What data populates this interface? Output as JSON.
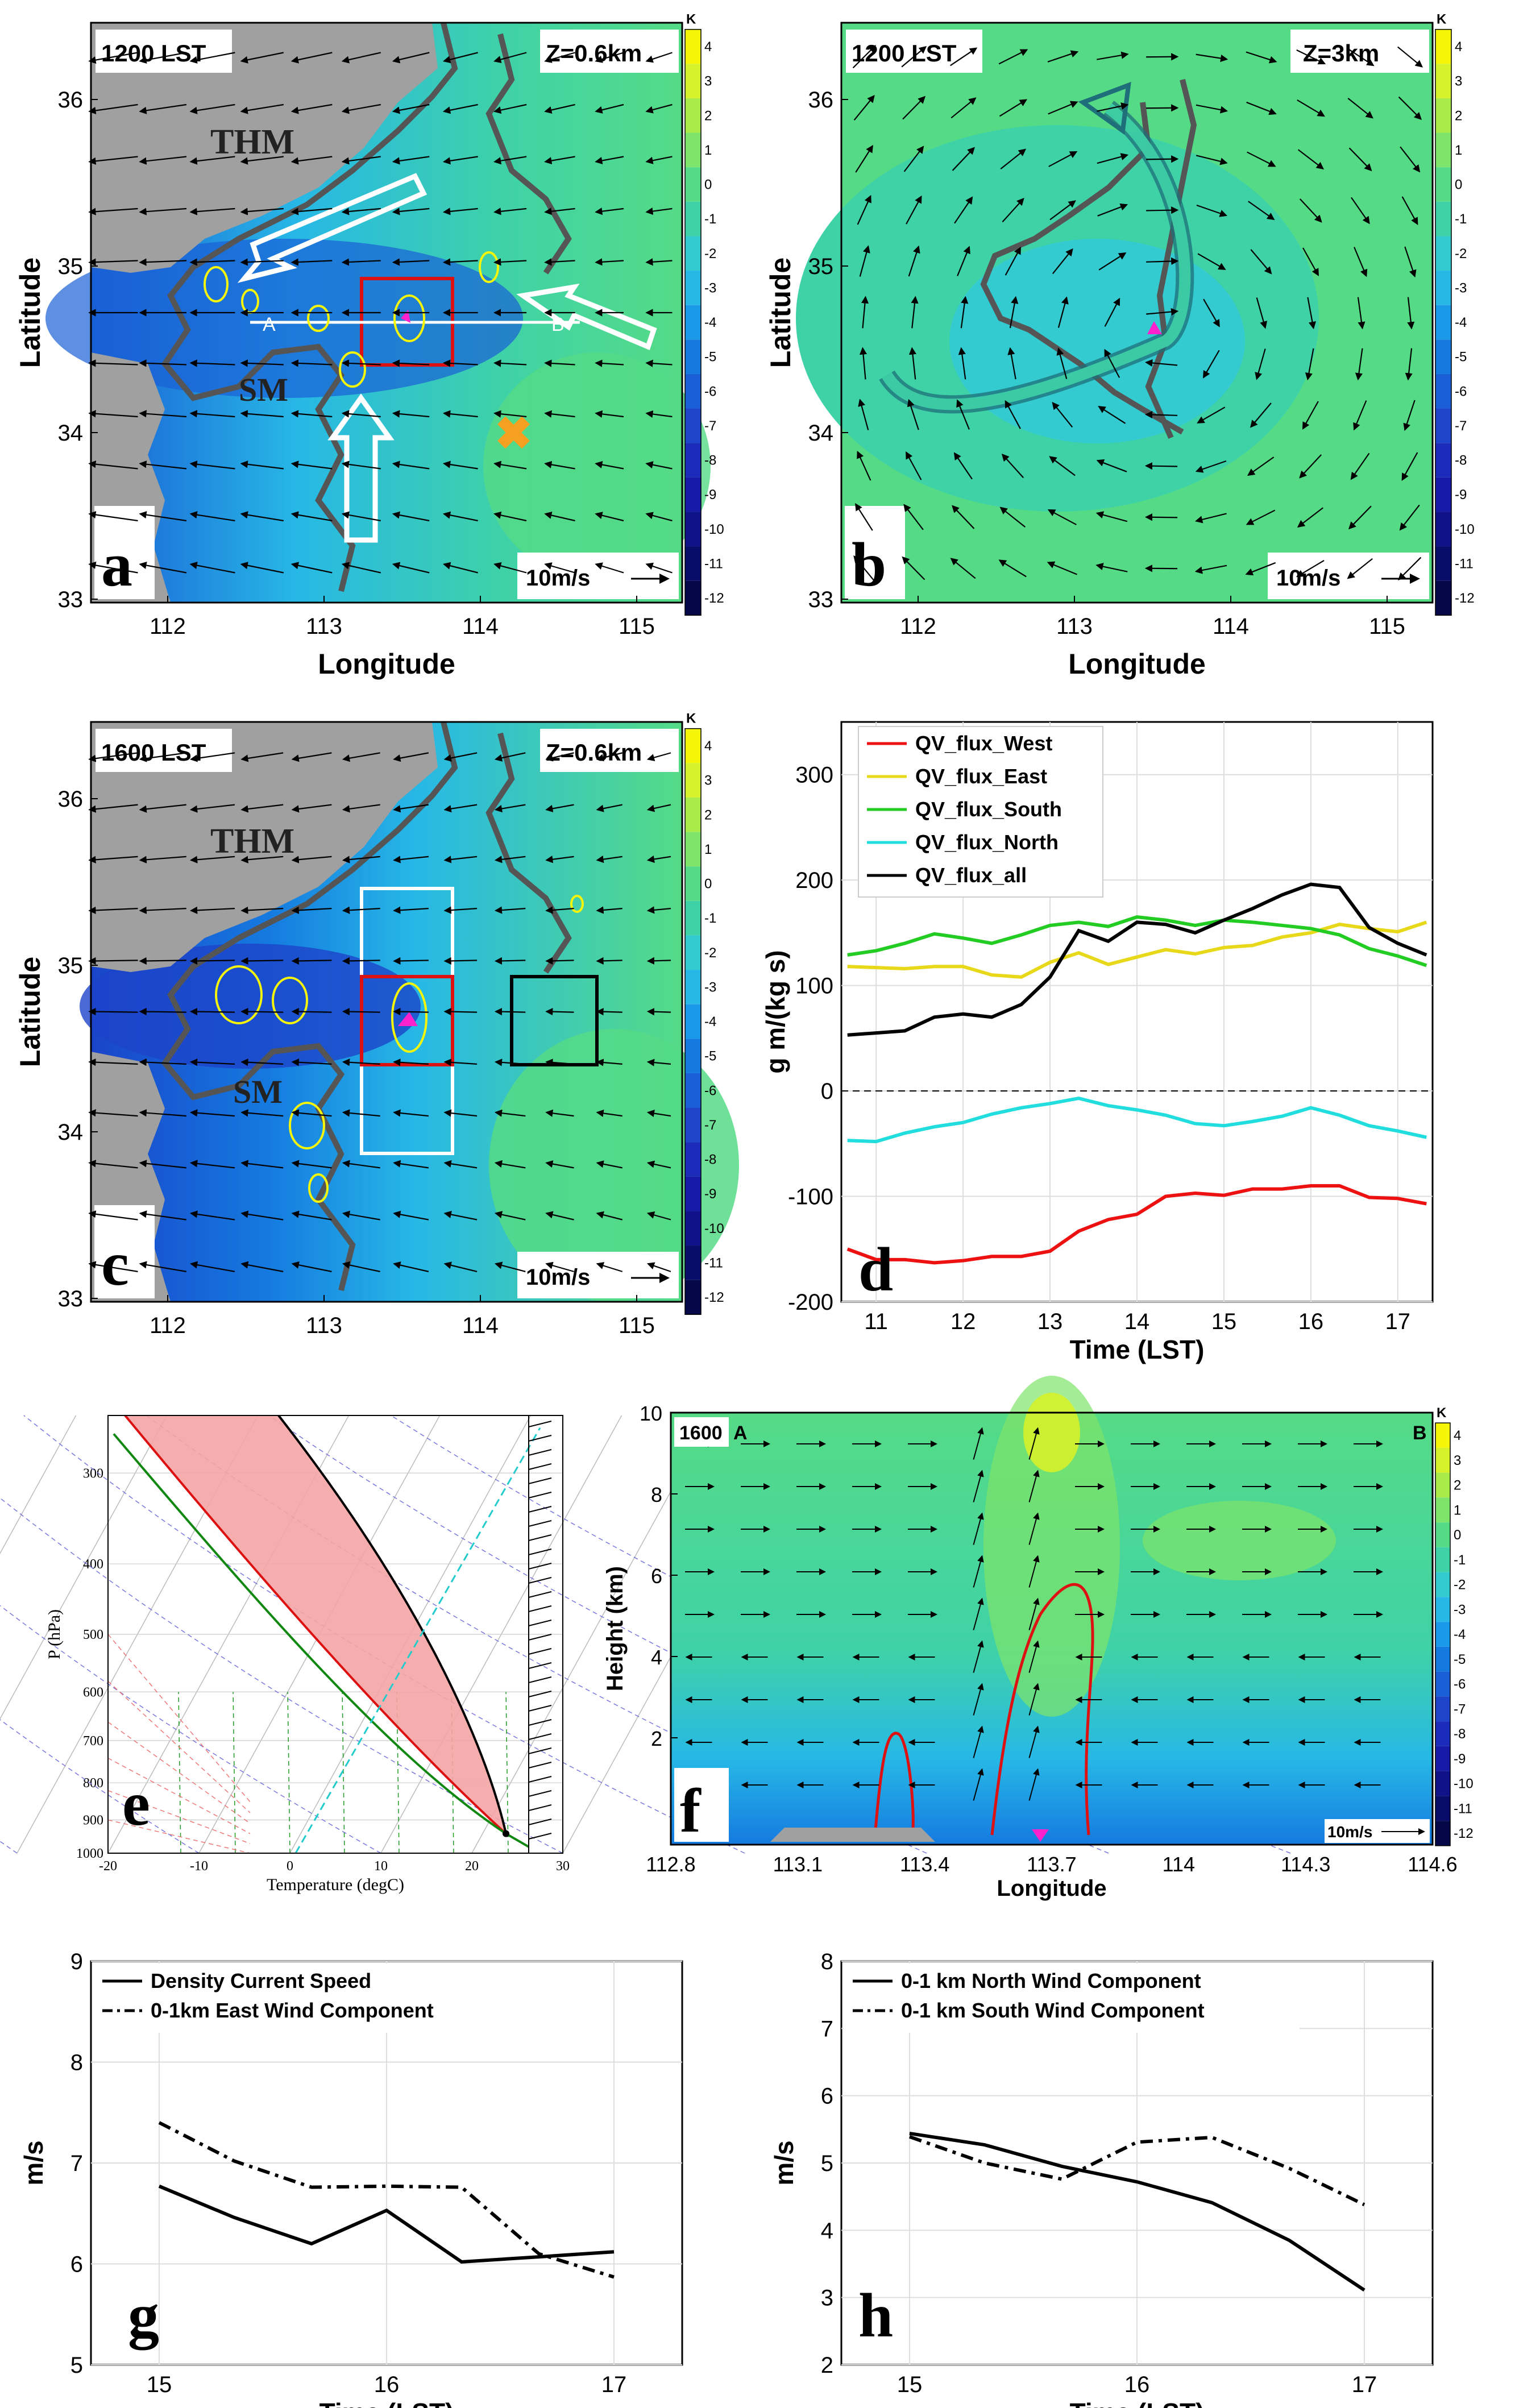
{
  "figure": {
    "colorbar": {
      "unit": "K",
      "ticks": [
        "4",
        "3",
        "2",
        "1",
        "0",
        "-1",
        "-2",
        "-3",
        "-4",
        "-5",
        "-6",
        "-7",
        "-8",
        "-9",
        "-10",
        "-11",
        "-12"
      ],
      "colors": [
        "#f5f50a",
        "#d6f22a",
        "#a9ec4a",
        "#7fe46a",
        "#55db86",
        "#3fd2a7",
        "#33cbd0",
        "#27b8e6",
        "#1a99e8",
        "#157ae0",
        "#1a5fd6",
        "#1d44c9",
        "#1b2cbb",
        "#171aa6",
        "#10128a",
        "#0a0c6a",
        "#050848"
      ]
    },
    "panel_a": {
      "letter": "a",
      "time": "1200 LST",
      "height": "Z=0.6km",
      "scale": "10m/s",
      "lat_label": "Latitude",
      "lon_label": "Longitude",
      "lat_ticks": [
        "36",
        "35",
        "34",
        "33"
      ],
      "lon_ticks": [
        "112",
        "113",
        "114",
        "115"
      ],
      "labels": {
        "thm": "THM",
        "sm": "SM",
        "a": "A",
        "b": "B"
      }
    },
    "panel_b": {
      "letter": "b",
      "time": "1200 LST",
      "height": "Z=3km",
      "scale": "10m/s",
      "lat_label": "Latitude",
      "lon_label": "Longitude",
      "lat_ticks": [
        "36",
        "35",
        "34",
        "33"
      ],
      "lon_ticks": [
        "112",
        "113",
        "114",
        "115"
      ]
    },
    "panel_c": {
      "letter": "c",
      "time": "1600 LST",
      "height": "Z=0.6km",
      "scale": "10m/s",
      "lat_label": "Latitude",
      "lon_label": "Longitude",
      "lat_ticks": [
        "36",
        "35",
        "34",
        "33"
      ],
      "lon_ticks": [
        "112",
        "113",
        "114",
        "115"
      ],
      "labels": {
        "thm": "THM",
        "sm": "SM"
      }
    },
    "panel_e": {
      "letter": "e",
      "ylabel": "P (hPa)",
      "xlabel": "Temperature (degC)",
      "p_ticks": [
        "300",
        "400",
        "500",
        "600",
        "700",
        "800",
        "900",
        "1000"
      ],
      "t_ticks": [
        "-20",
        "-10",
        "0",
        "10",
        "20",
        "30"
      ]
    },
    "panel_f": {
      "letter": "f",
      "time": "1600",
      "a": "A",
      "b": "B",
      "ylabel": "Height (km)",
      "xlabel": "Longitude",
      "scale": "10m/s",
      "y_ticks": [
        "10",
        "8",
        "6",
        "4",
        "2"
      ],
      "x_ticks": [
        "112.8",
        "113.1",
        "113.4",
        "113.7",
        "114",
        "114.3",
        "114.6"
      ]
    }
  },
  "chart_data": [
    {
      "panel": "d",
      "type": "line",
      "letter": "d",
      "xlabel": "Time (LST)",
      "ylabel": "g m/(kg s)",
      "xlim": [
        10.6,
        17.4
      ],
      "ylim": [
        -200,
        350
      ],
      "x_ticks": [
        11,
        12,
        13,
        14,
        15,
        16,
        17
      ],
      "y_ticks": [
        300,
        200,
        100,
        0,
        -100,
        -200
      ],
      "x": [
        10.67,
        11,
        11.33,
        11.67,
        12,
        12.33,
        12.67,
        13,
        13.33,
        13.67,
        14,
        14.33,
        14.67,
        15,
        15.33,
        15.67,
        16,
        16.33,
        16.67,
        17,
        17.33
      ],
      "series": [
        {
          "name": "QV_flux_West",
          "color": "#ee1111",
          "values": [
            -150,
            -160,
            -160,
            -163,
            -161,
            -157,
            -157,
            -152,
            -133,
            -122,
            -117,
            -100,
            -97,
            -99,
            -93,
            -93,
            -90,
            -90,
            -101,
            -102,
            -107
          ]
        },
        {
          "name": "QV_flux_East",
          "color": "#e8d81a",
          "values": [
            118,
            117,
            116,
            118,
            118,
            110,
            108,
            122,
            131,
            120,
            127,
            134,
            130,
            136,
            138,
            146,
            150,
            158,
            154,
            151,
            160
          ]
        },
        {
          "name": "QV_flux_South",
          "color": "#22cc22",
          "values": [
            129,
            133,
            140,
            149,
            145,
            140,
            148,
            157,
            160,
            156,
            165,
            162,
            157,
            162,
            160,
            157,
            154,
            148,
            135,
            128,
            119
          ]
        },
        {
          "name": "QV_flux_North",
          "color": "#22dddd",
          "values": [
            -47,
            -48,
            -40,
            -34,
            -30,
            -22,
            -16,
            -12,
            -7,
            -14,
            -18,
            -23,
            -31,
            -33,
            -29,
            -24,
            -16,
            -23,
            -33,
            -38,
            -44
          ]
        },
        {
          "name": "QV_flux_all",
          "color": "#000000",
          "values": [
            53,
            55,
            57,
            70,
            73,
            70,
            82,
            108,
            152,
            142,
            160,
            158,
            150,
            162,
            173,
            186,
            196,
            193,
            155,
            140,
            129
          ]
        }
      ]
    },
    {
      "panel": "g",
      "type": "line",
      "letter": "g",
      "xlabel": "Time (LST)",
      "ylabel": "m/s",
      "xlim": [
        14.7,
        17.3
      ],
      "ylim": [
        5,
        9
      ],
      "x_ticks": [
        15,
        16,
        17
      ],
      "y_ticks": [
        9,
        8,
        7,
        6,
        5
      ],
      "x": [
        15,
        15.33,
        15.67,
        16,
        16.33,
        16.67,
        17
      ],
      "series": [
        {
          "name": "Density Current Speed",
          "style": "solid",
          "values": [
            6.77,
            6.46,
            6.2,
            6.53,
            6.02,
            6.07,
            6.12
          ]
        },
        {
          "name": "0-1km East Wind Component",
          "style": "dashdot",
          "values": [
            7.4,
            7.02,
            6.76,
            6.77,
            6.76,
            6.1,
            5.87
          ]
        }
      ]
    },
    {
      "panel": "h",
      "type": "line",
      "letter": "h",
      "xlabel": "Time (LST)",
      "ylabel": "m/s",
      "xlim": [
        14.7,
        17.3
      ],
      "ylim": [
        2,
        8
      ],
      "x_ticks": [
        15,
        16,
        17
      ],
      "y_ticks": [
        8,
        7,
        6,
        5,
        4,
        3,
        2
      ],
      "x": [
        15,
        15.33,
        15.67,
        16,
        16.33,
        16.67,
        17
      ],
      "series": [
        {
          "name": "0-1 km North Wind Component",
          "style": "solid",
          "values": [
            5.44,
            5.27,
            4.95,
            4.72,
            4.41,
            3.85,
            3.11
          ]
        },
        {
          "name": "0-1 km South Wind Component",
          "style": "dashdot",
          "values": [
            5.39,
            5.0,
            4.76,
            5.31,
            5.38,
            4.92,
            4.38
          ]
        }
      ]
    }
  ]
}
